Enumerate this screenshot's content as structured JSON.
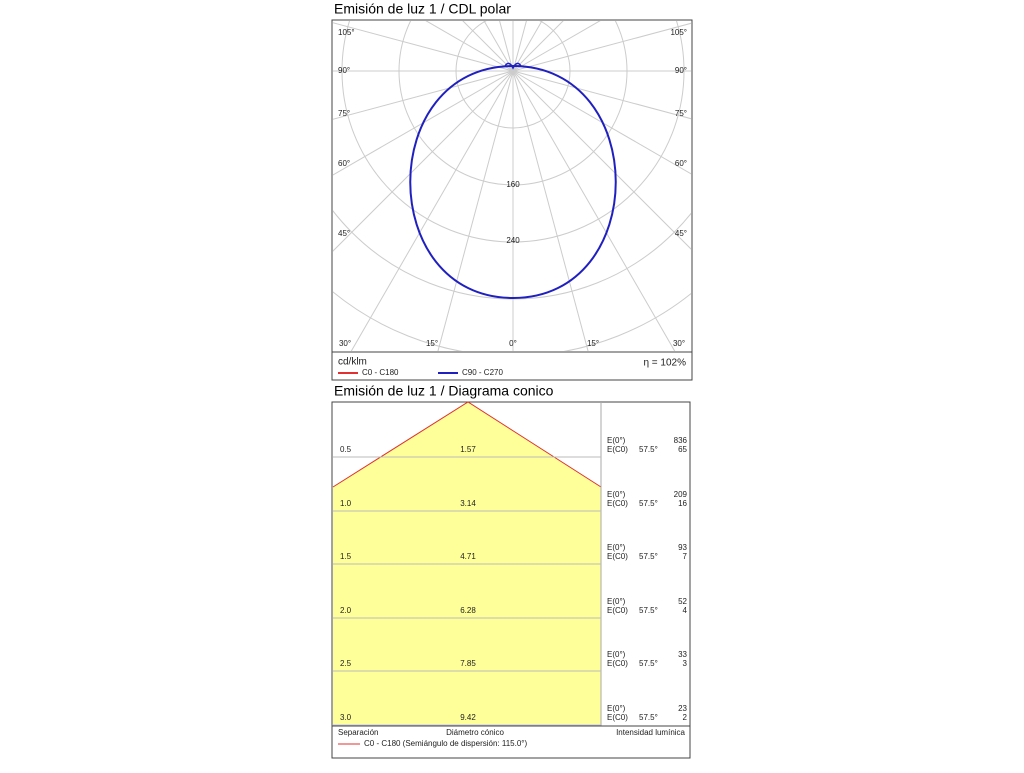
{
  "polar": {
    "title": "Emisión de luz 1 / CDL polar",
    "left_angles": [
      "105°",
      "90°",
      "75°",
      "60°",
      "45°"
    ],
    "right_angles": [
      "105°",
      "90°",
      "75°",
      "60°",
      "45°"
    ],
    "bottom_angles": [
      "30°",
      "15°",
      "0°",
      "15°",
      "30°"
    ],
    "ring_labels": [
      "160",
      "240"
    ],
    "unit": "cd/klm",
    "legend": [
      {
        "name": "C0 - C180",
        "color": "#e03030"
      },
      {
        "name": "C90 - C270",
        "color": "#2020c0"
      }
    ],
    "efficiency": "η = 102%"
  },
  "cone": {
    "title": "Emisión de luz 1 / Diagrama conico",
    "e0_label": "E(0°)",
    "ec0_label": "E(C0)",
    "angle": "57.5°",
    "rows": [
      {
        "separation": "0.5",
        "diameter": "1.57",
        "e0": "836",
        "ec0": "65"
      },
      {
        "separation": "1.0",
        "diameter": "3.14",
        "e0": "209",
        "ec0": "16"
      },
      {
        "separation": "1.5",
        "diameter": "4.71",
        "e0": "93",
        "ec0": "7"
      },
      {
        "separation": "2.0",
        "diameter": "6.28",
        "e0": "52",
        "ec0": "4"
      },
      {
        "separation": "2.5",
        "diameter": "7.85",
        "e0": "33",
        "ec0": "3"
      },
      {
        "separation": "3.0",
        "diameter": "9.42",
        "e0": "23",
        "ec0": "2"
      }
    ],
    "footer": {
      "separation": "Separación",
      "diameter": "Diámetro cónico",
      "intensity": "Intensidad lumínica",
      "legend": "C0 - C180 (Semiángulo de dispersión: 115.0°)"
    }
  }
}
